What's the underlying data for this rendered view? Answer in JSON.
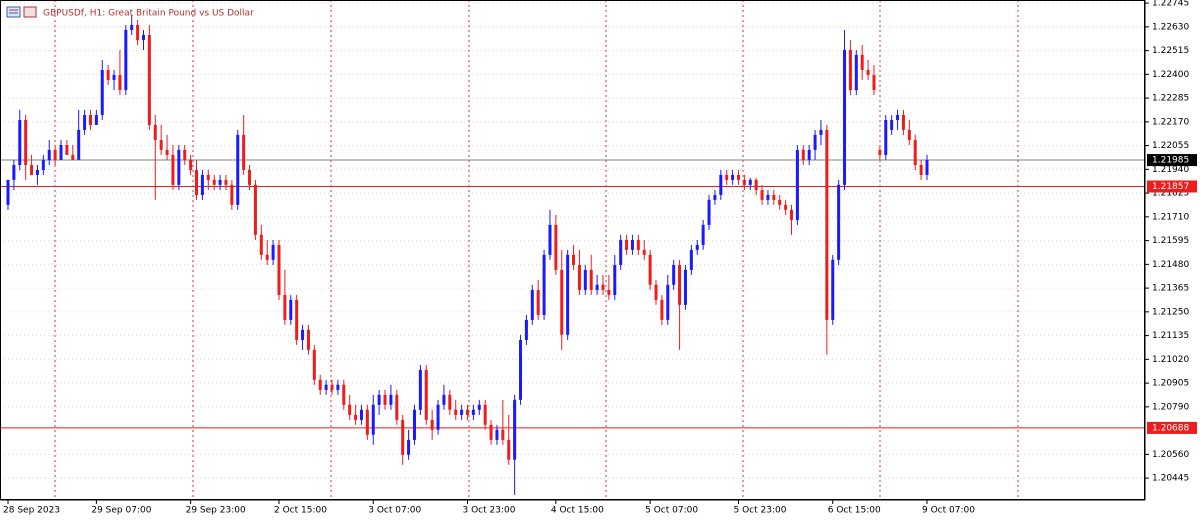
{
  "chart_data": {
    "type": "candlestick",
    "title": "GBPUSDf, H1:  Great Britain Pound vs US Dollar",
    "up_color": "#1a1aff",
    "down_color": "#ee1c1c",
    "ylim": [
      1.20339,
      1.2276
    ],
    "yticks": [
      1.22745,
      {
        "value": 1.2263,
        "label": "1.22630"
      },
      1.22515,
      {
        "value": 1.224,
        "label": "1.22400"
      },
      1.22285,
      {
        "value": 1.2217,
        "label": "1.22170"
      },
      1.22055,
      {
        "value": 1.2194,
        "label": "1.21940"
      },
      1.21825,
      {
        "value": 1.2171,
        "label": "1.21710"
      },
      1.21595,
      {
        "value": 1.2148,
        "label": "1.21480"
      },
      1.21365,
      {
        "value": 1.2125,
        "label": "1.21250"
      },
      1.21135,
      {
        "value": 1.2102,
        "label": "1.21020"
      },
      1.20905,
      {
        "value": 1.2079,
        "label": "1.20790"
      },
      {
        "value": 1.2056,
        "label": "1.20560"
      },
      1.20445
    ],
    "grid": true,
    "levels": [
      {
        "value": 1.21985,
        "color": "#808080",
        "label_color": "#000000"
      },
      {
        "value": 1.21857,
        "color": "#ee1c1c",
        "label_color": "#ee1c1c"
      },
      {
        "value": 1.20688,
        "color": "#ee1c1c",
        "label_color": "#ee1c1c"
      }
    ],
    "categories": [
      "28 Sep 2023",
      null,
      null,
      null,
      null,
      null,
      null,
      null,
      null,
      null,
      null,
      null,
      null,
      null,
      null,
      "29 Sep 07:00",
      null,
      null,
      null,
      null,
      null,
      null,
      null,
      null,
      null,
      null,
      null,
      null,
      null,
      null,
      null,
      "29 Sep 23:00",
      null,
      null,
      null,
      null,
      null,
      null,
      null,
      null,
      null,
      null,
      null,
      null,
      null,
      null,
      "2 Oct 15:00",
      null,
      null,
      null,
      null,
      null,
      null,
      null,
      null,
      null,
      null,
      null,
      null,
      null,
      null,
      null,
      "3 Oct 07:00",
      null,
      null,
      null,
      null,
      null,
      null,
      null,
      null,
      null,
      null,
      null,
      null,
      null,
      null,
      null,
      "3 Oct 23:00",
      null,
      null,
      null,
      null,
      null,
      null,
      null,
      null,
      null,
      null,
      null,
      null,
      null,
      null,
      "4 Oct 15:00",
      null,
      null,
      null,
      null,
      null,
      null,
      null,
      null,
      null,
      null,
      null,
      null,
      null,
      null,
      null,
      "5 Oct 07:00",
      null,
      null,
      null,
      null,
      null,
      null,
      null,
      null,
      null,
      null,
      null,
      null,
      null,
      null,
      "5 Oct 23:00",
      null,
      null,
      null,
      null,
      null,
      null,
      null,
      null,
      null,
      null,
      null,
      null,
      null,
      null,
      null,
      "6 Oct 15:00",
      null,
      null,
      null,
      null,
      null,
      null,
      null,
      null,
      null,
      null,
      null,
      null,
      null,
      null,
      null,
      "9 Oct 07:00"
    ],
    "candles": [
      [
        1.21768,
        1.21889,
        1.21744,
        1.21889
      ],
      [
        1.21889,
        1.21986,
        1.2184,
        1.21961
      ],
      [
        1.21961,
        1.22228,
        1.21937,
        1.22179
      ],
      [
        1.22179,
        1.22203,
        1.21889,
        1.21961
      ],
      [
        1.21961,
        1.2201,
        1.21913,
        1.21913
      ],
      [
        1.21913,
        1.21961,
        1.21865,
        1.21937
      ],
      [
        1.21937,
        1.2201,
        1.21913,
        1.21986
      ],
      [
        1.21986,
        1.22082,
        1.21961,
        1.22034
      ],
      [
        1.22034,
        1.22058,
        1.21961,
        1.21986
      ],
      [
        1.21986,
        1.22082,
        1.21986,
        1.22058
      ],
      [
        1.22058,
        1.22082,
        1.2201,
        1.2201
      ],
      [
        1.2201,
        1.22058,
        1.21986,
        1.21986
      ],
      [
        1.21986,
        1.22228,
        1.21986,
        1.22131
      ],
      [
        1.22131,
        1.22228,
        1.22107,
        1.22203
      ],
      [
        1.22203,
        1.22228,
        1.22131,
        1.22155
      ],
      [
        1.22155,
        1.22228,
        1.22155,
        1.22203
      ],
      [
        1.22203,
        1.2247,
        1.22179,
        1.22421
      ],
      [
        1.22421,
        1.22445,
        1.22349,
        1.22373
      ],
      [
        1.22373,
        1.22421,
        1.22324,
        1.22397
      ],
      [
        1.22397,
        1.22518,
        1.223,
        1.22324
      ],
      [
        1.22324,
        1.22639,
        1.223,
        1.22615
      ],
      [
        1.22615,
        1.22687,
        1.22591,
        1.22639
      ],
      [
        1.22639,
        1.22663,
        1.22542,
        1.22566
      ],
      [
        1.22566,
        1.22615,
        1.22518,
        1.22591
      ],
      [
        1.22591,
        1.22639,
        1.22131,
        1.22155
      ],
      [
        1.22155,
        1.22203,
        1.21792,
        1.22082
      ],
      [
        1.22082,
        1.22155,
        1.2201,
        1.22034
      ],
      [
        1.22034,
        1.22107,
        1.21986,
        1.2201
      ],
      [
        1.2201,
        1.22058,
        1.2184,
        1.21865
      ],
      [
        1.21865,
        1.22058,
        1.2184,
        1.22034
      ],
      [
        1.22034,
        1.22058,
        1.21961,
        1.21986
      ],
      [
        1.21986,
        1.2201,
        1.21913,
        1.21937
      ],
      [
        1.21937,
        1.21986,
        1.21792,
        1.21816
      ],
      [
        1.21816,
        1.21937,
        1.21792,
        1.21913
      ],
      [
        1.21913,
        1.21937,
        1.2184,
        1.21889
      ],
      [
        1.21889,
        1.21913,
        1.2184,
        1.21865
      ],
      [
        1.21865,
        1.21913,
        1.2184,
        1.21889
      ],
      [
        1.21889,
        1.21913,
        1.2184,
        1.21865
      ],
      [
        1.21865,
        1.21889,
        1.21744,
        1.21768
      ],
      [
        1.21768,
        1.22131,
        1.21744,
        1.22107
      ],
      [
        1.22107,
        1.22203,
        1.21913,
        1.21937
      ],
      [
        1.21937,
        1.21961,
        1.2184,
        1.21865
      ],
      [
        1.21865,
        1.21889,
        1.21598,
        1.21623
      ],
      [
        1.21623,
        1.21671,
        1.21502,
        1.21526
      ],
      [
        1.21526,
        1.21598,
        1.21477,
        1.21502
      ],
      [
        1.21502,
        1.21598,
        1.21477,
        1.21574
      ],
      [
        1.21574,
        1.21598,
        1.21308,
        1.21332
      ],
      [
        1.21332,
        1.21453,
        1.21187,
        1.21211
      ],
      [
        1.21211,
        1.21332,
        1.21187,
        1.21308
      ],
      [
        1.21308,
        1.21332,
        1.2109,
        1.21114
      ],
      [
        1.21114,
        1.21187,
        1.21066,
        1.21163
      ],
      [
        1.21163,
        1.21187,
        1.21042,
        1.21066
      ],
      [
        1.21066,
        1.2109,
        1.20897,
        1.20921
      ],
      [
        1.20921,
        1.20945,
        1.20848,
        1.20872
      ],
      [
        1.20872,
        1.20921,
        1.20848,
        1.20897
      ],
      [
        1.20897,
        1.20921,
        1.20848,
        1.20872
      ],
      [
        1.20872,
        1.20921,
        1.20848,
        1.20897
      ],
      [
        1.20897,
        1.20921,
        1.20776,
        1.208
      ],
      [
        1.208,
        1.20848,
        1.20727,
        1.20751
      ],
      [
        1.20751,
        1.208,
        1.20703,
        1.20727
      ],
      [
        1.20727,
        1.208,
        1.20703,
        1.20776
      ],
      [
        1.20776,
        1.208,
        1.2063,
        1.20655
      ],
      [
        1.20655,
        1.20848,
        1.20606,
        1.208
      ],
      [
        1.208,
        1.20872,
        1.20751,
        1.20848
      ],
      [
        1.20848,
        1.20872,
        1.20776,
        1.208
      ],
      [
        1.208,
        1.20897,
        1.20776,
        1.20848
      ],
      [
        1.20848,
        1.20872,
        1.20703,
        1.20727
      ],
      [
        1.20727,
        1.20751,
        1.20509,
        1.20558
      ],
      [
        1.20558,
        1.20679,
        1.20534,
        1.2063
      ],
      [
        1.2063,
        1.208,
        1.20606,
        1.20776
      ],
      [
        1.20776,
        1.20993,
        1.20751,
        1.20969
      ],
      [
        1.20969,
        1.20993,
        1.20703,
        1.20727
      ],
      [
        1.20727,
        1.20776,
        1.2063,
        1.20679
      ],
      [
        1.20679,
        1.20824,
        1.20655,
        1.208
      ],
      [
        1.208,
        1.20897,
        1.20776,
        1.20848
      ],
      [
        1.20848,
        1.20872,
        1.20751,
        1.20776
      ],
      [
        1.20776,
        1.20824,
        1.20727,
        1.20751
      ],
      [
        1.20751,
        1.208,
        1.20727,
        1.20776
      ],
      [
        1.20776,
        1.208,
        1.20727,
        1.20751
      ],
      [
        1.20751,
        1.208,
        1.20727,
        1.20776
      ],
      [
        1.20776,
        1.20824,
        1.20751,
        1.208
      ],
      [
        1.208,
        1.20824,
        1.20679,
        1.20703
      ],
      [
        1.20703,
        1.20727,
        1.20606,
        1.2063
      ],
      [
        1.2063,
        1.20703,
        1.20606,
        1.20679
      ],
      [
        1.20679,
        1.20824,
        1.20606,
        1.2063
      ],
      [
        1.2063,
        1.20751,
        1.20509,
        1.20534
      ],
      [
        1.20534,
        1.20848,
        1.20364,
        1.20824
      ],
      [
        1.20824,
        1.21139,
        1.208,
        1.21114
      ],
      [
        1.21114,
        1.21235,
        1.2109,
        1.21211
      ],
      [
        1.21211,
        1.21381,
        1.21187,
        1.21356
      ],
      [
        1.21356,
        1.21405,
        1.21211,
        1.21235
      ],
      [
        1.21235,
        1.2155,
        1.21211,
        1.21526
      ],
      [
        1.21526,
        1.21744,
        1.21502,
        1.21671
      ],
      [
        1.21671,
        1.21719,
        1.21429,
        1.21453
      ],
      [
        1.21453,
        1.2155,
        1.21066,
        1.21139
      ],
      [
        1.21139,
        1.2155,
        1.21114,
        1.21526
      ],
      [
        1.21526,
        1.21574,
        1.21453,
        1.21477
      ],
      [
        1.21477,
        1.2155,
        1.21332,
        1.21356
      ],
      [
        1.21356,
        1.21477,
        1.21332,
        1.21453
      ],
      [
        1.21453,
        1.21526,
        1.21332,
        1.21356
      ],
      [
        1.21356,
        1.21429,
        1.21332,
        1.21381
      ],
      [
        1.21381,
        1.21429,
        1.21332,
        1.21356
      ],
      [
        1.21356,
        1.21429,
        1.21308,
        1.21332
      ],
      [
        1.21332,
        1.21526,
        1.21308,
        1.21477
      ],
      [
        1.21477,
        1.21623,
        1.21453,
        1.21598
      ],
      [
        1.21598,
        1.21623,
        1.21526,
        1.2155
      ],
      [
        1.2155,
        1.21623,
        1.21526,
        1.21598
      ],
      [
        1.21598,
        1.21623,
        1.21526,
        1.2155
      ],
      [
        1.2155,
        1.21598,
        1.21502,
        1.21526
      ],
      [
        1.21526,
        1.2155,
        1.21356,
        1.21381
      ],
      [
        1.21381,
        1.21405,
        1.21284,
        1.21308
      ],
      [
        1.21308,
        1.21332,
        1.21187,
        1.21211
      ],
      [
        1.21211,
        1.21429,
        1.21187,
        1.21381
      ],
      [
        1.21381,
        1.21502,
        1.21356,
        1.21477
      ],
      [
        1.21477,
        1.21502,
        1.21066,
        1.21284
      ],
      [
        1.21284,
        1.21477,
        1.2126,
        1.21453
      ],
      [
        1.21453,
        1.21574,
        1.21429,
        1.2155
      ],
      [
        1.2155,
        1.21598,
        1.21526,
        1.21574
      ],
      [
        1.21574,
        1.21695,
        1.2155,
        1.21671
      ],
      [
        1.21671,
        1.21816,
        1.21647,
        1.21792
      ],
      [
        1.21792,
        1.2184,
        1.21768,
        1.21816
      ],
      [
        1.21816,
        1.21937,
        1.21792,
        1.21913
      ],
      [
        1.21913,
        1.21937,
        1.21865,
        1.21889
      ],
      [
        1.21889,
        1.21937,
        1.21865,
        1.21913
      ],
      [
        1.21913,
        1.21937,
        1.21865,
        1.21889
      ],
      [
        1.21889,
        1.21913,
        1.2184,
        1.21865
      ],
      [
        1.21865,
        1.21899,
        1.2184,
        1.21889
      ],
      [
        1.21889,
        1.21899,
        1.21816,
        1.2184
      ],
      [
        1.2184,
        1.21865,
        1.21768,
        1.21792
      ],
      [
        1.21792,
        1.2184,
        1.21768,
        1.21816
      ],
      [
        1.21816,
        1.2184,
        1.21768,
        1.21792
      ],
      [
        1.21792,
        1.21816,
        1.21744,
        1.21768
      ],
      [
        1.21768,
        1.21792,
        1.21719,
        1.21744
      ],
      [
        1.21744,
        1.21768,
        1.21623,
        1.21695
      ],
      [
        1.21695,
        1.22058,
        1.21671,
        1.22034
      ],
      [
        1.22034,
        1.22058,
        1.21961,
        1.21986
      ],
      [
        1.21986,
        1.22058,
        1.21961,
        1.22034
      ],
      [
        1.22034,
        1.22131,
        1.21986,
        1.22107
      ],
      [
        1.22107,
        1.22179,
        1.22058,
        1.22131
      ],
      [
        1.22131,
        1.22155,
        1.21042,
        1.21211
      ],
      [
        1.21211,
        1.21526,
        1.21187,
        1.21502
      ],
      [
        1.21502,
        1.21889,
        1.21477,
        1.21865
      ],
      [
        1.21865,
        1.22615,
        1.2184,
        1.22518
      ],
      [
        1.22518,
        1.22566,
        1.223,
        1.22324
      ],
      [
        1.22324,
        1.22518,
        1.223,
        1.22494
      ],
      [
        1.22494,
        1.22542,
        1.22373,
        1.22421
      ],
      [
        1.22421,
        1.2247,
        1.22373,
        1.22397
      ],
      [
        1.22397,
        1.22445,
        1.223,
        1.22324
      ],
      [
        1.22034,
        1.22058,
        1.21986,
        1.2201
      ],
      [
        1.2201,
        1.22203,
        1.21986,
        1.22179
      ],
      [
        1.22131,
        1.22203,
        1.22107,
        1.22179
      ],
      [
        1.22179,
        1.22228,
        1.22131,
        1.22203
      ],
      [
        1.22203,
        1.22228,
        1.22107,
        1.22131
      ],
      [
        1.22131,
        1.22179,
        1.22058,
        1.22082
      ],
      [
        1.22082,
        1.22107,
        1.21937,
        1.21961
      ],
      [
        1.21961,
        1.21986,
        1.21889,
        1.21913
      ],
      [
        1.21913,
        1.2201,
        1.21889,
        1.21985
      ]
    ]
  }
}
